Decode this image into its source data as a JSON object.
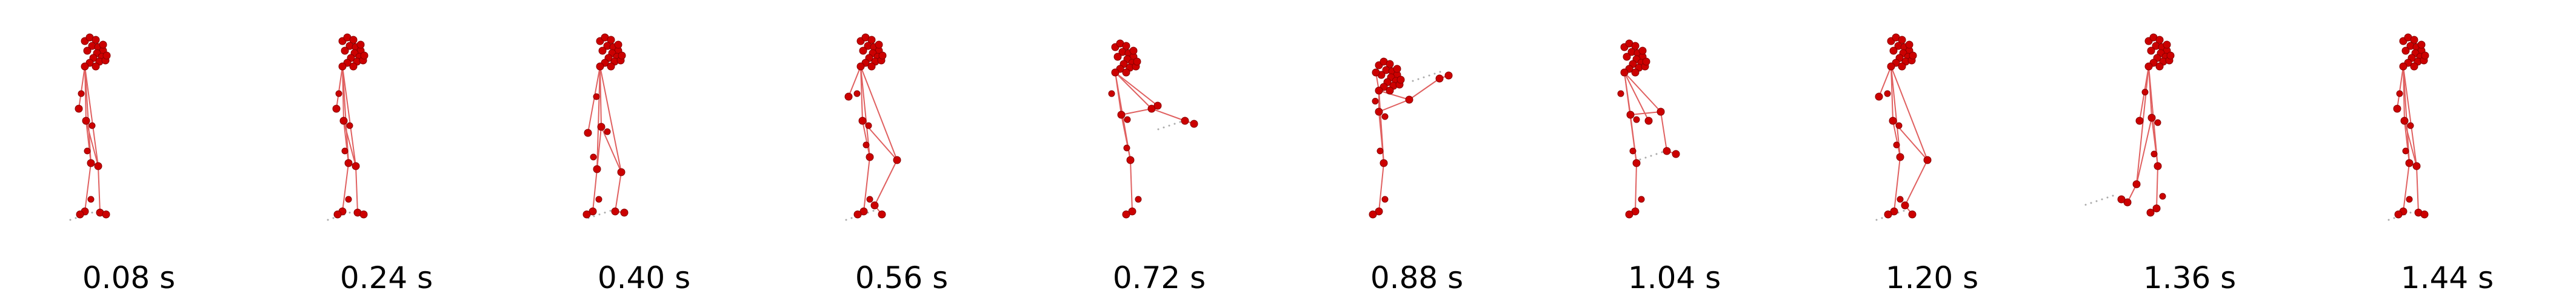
{
  "colors": {
    "skeleton": "#cc0000",
    "bone": "#e06060",
    "trail": "#555555",
    "caption": "#000000"
  },
  "frames": [
    {
      "time_label": "0.08 s",
      "pose": "standing"
    },
    {
      "time_label": "0.24 s",
      "pose": "standing"
    },
    {
      "time_label": "0.40 s",
      "pose": "step"
    },
    {
      "time_label": "0.56 s",
      "pose": "knee-lift"
    },
    {
      "time_label": "0.72 s",
      "pose": "kick-low"
    },
    {
      "time_label": "0.88 s",
      "pose": "kick-high"
    },
    {
      "time_label": "1.04 s",
      "pose": "kick-retract"
    },
    {
      "time_label": "1.20 s",
      "pose": "knee-lift"
    },
    {
      "time_label": "1.36 s",
      "pose": "step-back"
    },
    {
      "time_label": "1.44 s",
      "pose": "standing"
    }
  ]
}
